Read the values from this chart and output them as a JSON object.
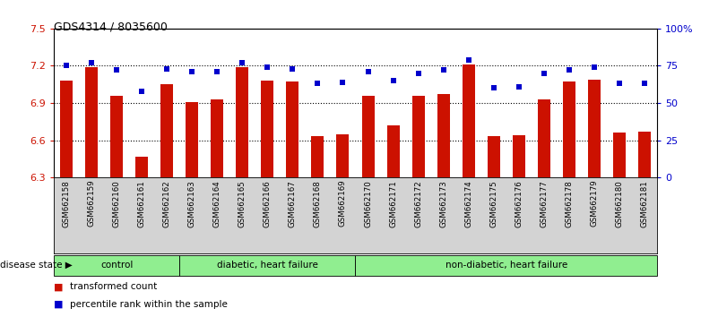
{
  "title": "GDS4314 / 8035600",
  "samples": [
    "GSM662158",
    "GSM662159",
    "GSM662160",
    "GSM662161",
    "GSM662162",
    "GSM662163",
    "GSM662164",
    "GSM662165",
    "GSM662166",
    "GSM662167",
    "GSM662168",
    "GSM662169",
    "GSM662170",
    "GSM662171",
    "GSM662172",
    "GSM662173",
    "GSM662174",
    "GSM662175",
    "GSM662176",
    "GSM662177",
    "GSM662178",
    "GSM662179",
    "GSM662180",
    "GSM662181"
  ],
  "red_values": [
    7.08,
    7.19,
    6.96,
    6.47,
    7.05,
    6.91,
    6.93,
    7.19,
    7.08,
    7.07,
    6.63,
    6.65,
    6.96,
    6.72,
    6.96,
    6.97,
    7.21,
    6.63,
    6.64,
    6.93,
    7.07,
    7.09,
    6.66,
    6.67
  ],
  "blue_values": [
    75,
    77,
    72,
    58,
    73,
    71,
    71,
    77,
    74,
    73,
    63,
    64,
    71,
    65,
    70,
    72,
    79,
    60,
    61,
    70,
    72,
    74,
    63,
    63
  ],
  "groups": [
    {
      "label": "control",
      "start": 0,
      "end": 4
    },
    {
      "label": "diabetic, heart failure",
      "start": 5,
      "end": 11
    },
    {
      "label": "non-diabetic, heart failure",
      "start": 12,
      "end": 23
    }
  ],
  "ylim_left": [
    6.3,
    7.5
  ],
  "ylim_right": [
    0,
    100
  ],
  "yticks_left": [
    6.3,
    6.6,
    6.9,
    7.2,
    7.5
  ],
  "yticks_right": [
    0,
    25,
    50,
    75,
    100
  ],
  "ytick_labels_right": [
    "0",
    "25",
    "50",
    "75",
    "100%"
  ],
  "hgrid_vals": [
    6.6,
    6.9,
    7.2
  ],
  "bar_color": "#CC1100",
  "dot_color": "#0000CC",
  "bg_color": "#ffffff",
  "xtick_bg": "#d3d3d3",
  "group_color": "#90EE90",
  "label_color_left": "#CC1100",
  "label_color_right": "#0000CC",
  "bar_width": 0.5
}
